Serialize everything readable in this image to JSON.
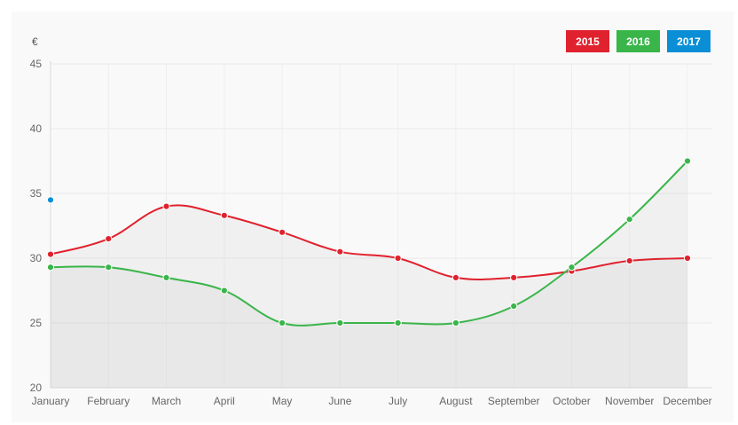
{
  "unit": "€",
  "legend": [
    {
      "label": "2015",
      "color": "#e0222e"
    },
    {
      "label": "2016",
      "color": "#3ab54a"
    },
    {
      "label": "2017",
      "color": "#0a8fd6"
    }
  ],
  "chart_data": {
    "type": "line",
    "categories": [
      "January",
      "February",
      "March",
      "April",
      "May",
      "June",
      "July",
      "August",
      "September",
      "October",
      "November",
      "December"
    ],
    "series": [
      {
        "name": "2015",
        "color": "#e0222e",
        "values": [
          30.3,
          31.5,
          34.0,
          33.3,
          32.0,
          30.5,
          30.0,
          28.5,
          28.5,
          29.0,
          29.8,
          30.0
        ]
      },
      {
        "name": "2016",
        "color": "#3ab54a",
        "values": [
          29.3,
          29.3,
          28.5,
          27.5,
          25.0,
          25.0,
          25.0,
          25.0,
          26.3,
          29.3,
          33.0,
          37.5
        ]
      },
      {
        "name": "2017",
        "color": "#0a8fd6",
        "values": [
          34.5,
          null,
          null,
          null,
          null,
          null,
          null,
          null,
          null,
          null,
          null,
          null
        ]
      }
    ],
    "yticks": [
      20,
      25,
      30,
      35,
      40,
      45
    ],
    "ylim": [
      20,
      45
    ],
    "ylabel": "€",
    "grid": true,
    "legend_position": "top-right"
  }
}
